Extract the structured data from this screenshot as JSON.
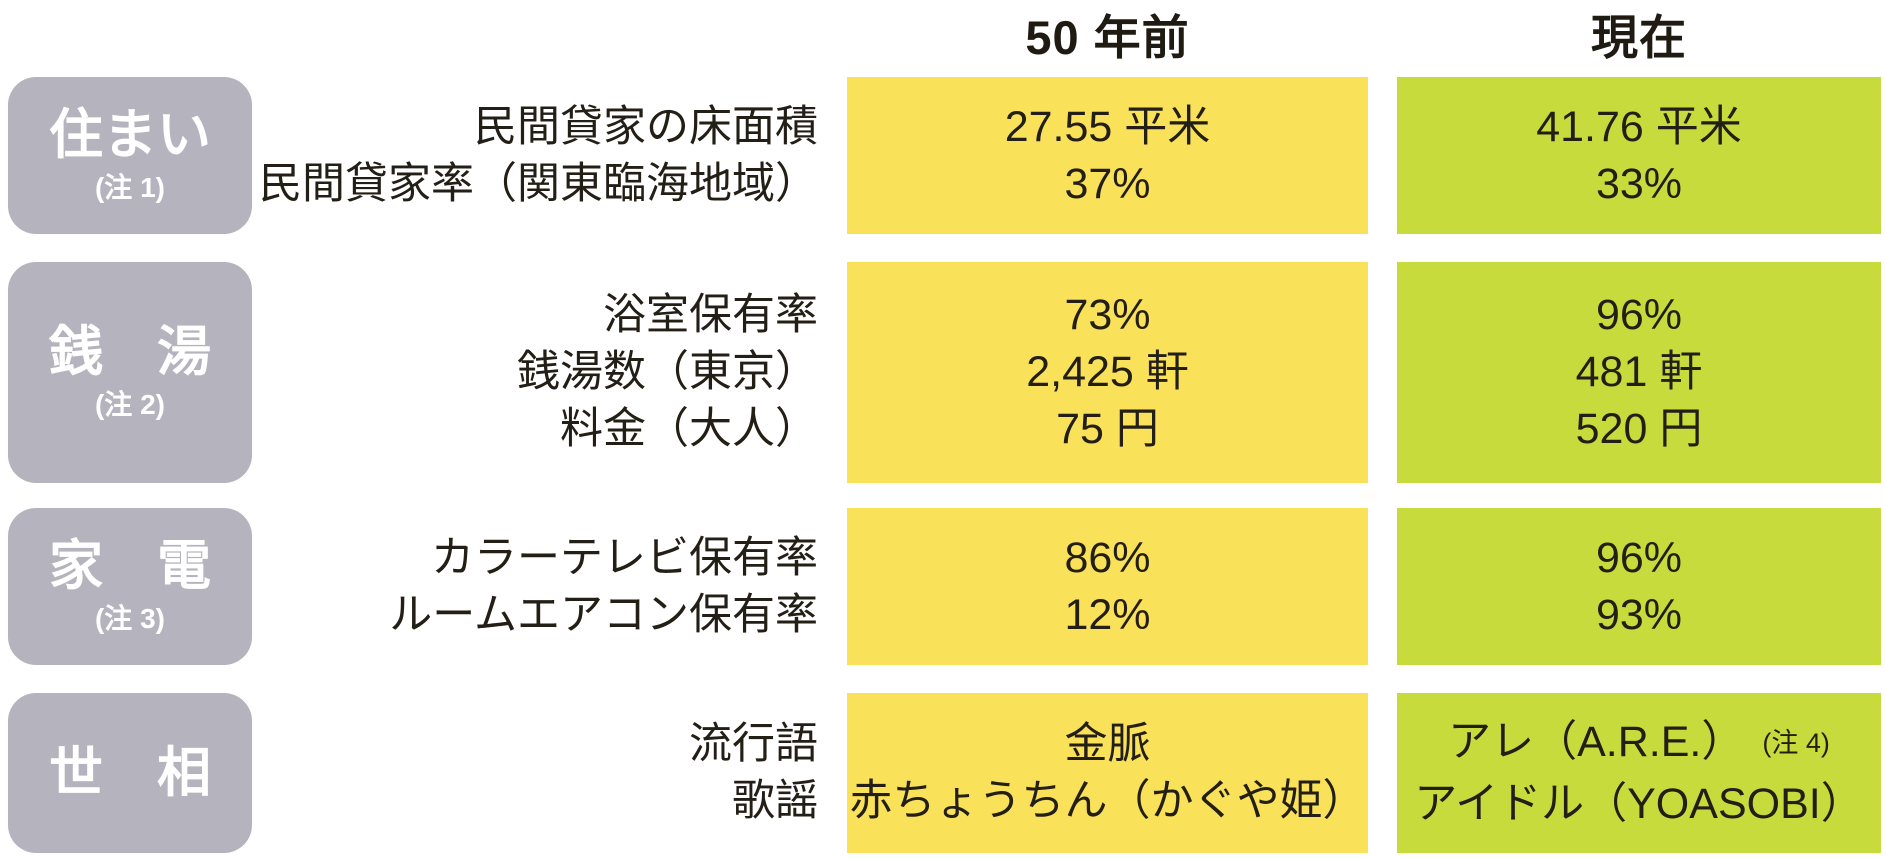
{
  "header": {
    "col_past": "50 年前",
    "col_now": "現在"
  },
  "colors": {
    "past_column": "#f9e15a",
    "now_column": "#c8db3d",
    "category_box": "#b5b4be",
    "text": "#241f16",
    "category_text": "#ffffff"
  },
  "categories": [
    {
      "label": "住まい",
      "note": "(注 1)",
      "rows": [
        {
          "label": "民間貸家の床面積",
          "past": "27.55 平米",
          "now": "41.76 平米"
        },
        {
          "label": "民間貸家率（関東臨海地域）",
          "past": "37%",
          "now": "33%"
        }
      ]
    },
    {
      "label": "銭　湯",
      "note": "(注 2)",
      "rows": [
        {
          "label": "浴室保有率",
          "past": "73%",
          "now": "96%"
        },
        {
          "label": "銭湯数（東京）",
          "past": "2,425 軒",
          "now": "481 軒"
        },
        {
          "label": "料金（大人）",
          "past": "75 円",
          "now": "520 円"
        }
      ]
    },
    {
      "label": "家　電",
      "note": "(注 3)",
      "rows": [
        {
          "label": "カラーテレビ保有率",
          "past": "86%",
          "now": "96%"
        },
        {
          "label": "ルームエアコン保有率",
          "past": "12%",
          "now": "93%"
        }
      ]
    },
    {
      "label": "世　相",
      "note": "",
      "rows": [
        {
          "label": "流行語",
          "past": "金脈",
          "now": "アレ（A.R.E.）",
          "now_note": "(注 4)"
        },
        {
          "label": "歌謡",
          "past": "赤ちょうちん（かぐや姫）",
          "now": "アイドル（YOASOBI）"
        }
      ]
    }
  ],
  "chart_data": {
    "type": "table",
    "columns": [
      "カテゴリ",
      "項目",
      "50 年前",
      "現在"
    ],
    "rows": [
      [
        "住まい (注 1)",
        "民間貸家の床面積",
        "27.55 平米",
        "41.76 平米"
      ],
      [
        "住まい (注 1)",
        "民間貸家率（関東臨海地域）",
        "37%",
        "33%"
      ],
      [
        "銭湯 (注 2)",
        "浴室保有率",
        "73%",
        "96%"
      ],
      [
        "銭湯 (注 2)",
        "銭湯数（東京）",
        "2,425 軒",
        "481 軒"
      ],
      [
        "銭湯 (注 2)",
        "料金（大人）",
        "75 円",
        "520 円"
      ],
      [
        "家電 (注 3)",
        "カラーテレビ保有率",
        "86%",
        "96%"
      ],
      [
        "家電 (注 3)",
        "ルームエアコン保有率",
        "12%",
        "93%"
      ],
      [
        "世相",
        "流行語",
        "金脈",
        "アレ（A.R.E.）(注 4)"
      ],
      [
        "世相",
        "歌謡",
        "赤ちょうちん（かぐや姫）",
        "アイドル（YOASOBI）"
      ]
    ],
    "legend_position": "none",
    "grid": false
  }
}
